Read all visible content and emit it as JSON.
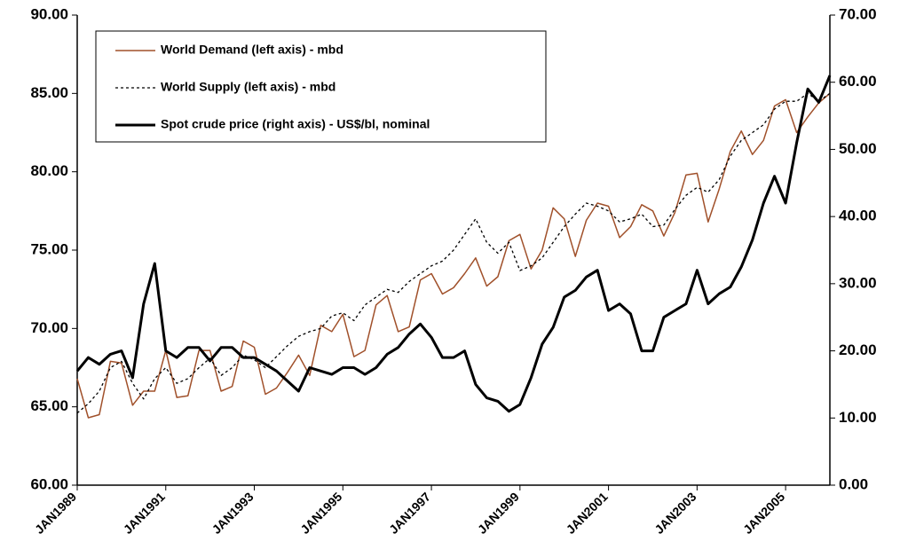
{
  "chart_data": {
    "type": "line",
    "categories": [
      "JAN1989",
      null,
      null,
      null,
      null,
      null,
      null,
      null,
      "JAN1991",
      null,
      null,
      null,
      null,
      null,
      null,
      null,
      "JAN1993",
      null,
      null,
      null,
      null,
      null,
      null,
      null,
      "JAN1995",
      null,
      null,
      null,
      null,
      null,
      null,
      null,
      "JAN1997",
      null,
      null,
      null,
      null,
      null,
      null,
      null,
      "JAN1999",
      null,
      null,
      null,
      null,
      null,
      null,
      null,
      "JAN2001",
      null,
      null,
      null,
      null,
      null,
      null,
      null,
      "JAN2003",
      null,
      null,
      null,
      null,
      null,
      null,
      null,
      "JAN2005",
      null,
      null,
      null,
      null
    ],
    "series": [
      {
        "name": "World Demand (left axis) - mbd",
        "color": "#a0502a",
        "style": "solid",
        "axis": "y",
        "values": [
          66.8,
          64.3,
          64.5,
          67.9,
          67.8,
          65.1,
          66.0,
          66.0,
          68.6,
          65.6,
          65.7,
          68.6,
          68.6,
          66.0,
          66.3,
          69.2,
          68.8,
          65.8,
          66.2,
          67.2,
          68.3,
          67.0,
          70.2,
          69.8,
          70.9,
          68.2,
          68.6,
          71.5,
          72.1,
          69.8,
          70.1,
          73.1,
          73.5,
          72.2,
          72.6,
          73.5,
          74.5,
          72.7,
          73.3,
          75.6,
          76.0,
          73.8,
          75.0,
          77.7,
          77.0,
          74.6,
          76.9,
          78.0,
          77.8,
          75.8,
          76.5,
          77.9,
          77.5,
          75.9,
          77.4,
          79.8,
          79.9,
          76.8,
          78.9,
          81.3,
          82.6,
          81.1,
          82.0,
          84.2,
          84.6,
          82.5,
          83.5,
          84.4,
          85.0
        ]
      },
      {
        "name": "World Supply (left axis) - mbd",
        "color": "#000000",
        "style": "dotted",
        "axis": "y",
        "values": [
          64.6,
          65.2,
          66.0,
          67.5,
          67.9,
          66.5,
          65.5,
          66.8,
          67.5,
          66.5,
          66.8,
          67.5,
          68.1,
          67.0,
          67.5,
          68.3,
          68.0,
          67.5,
          68.2,
          68.9,
          69.5,
          69.8,
          70.0,
          70.8,
          71.0,
          70.5,
          71.5,
          72.0,
          72.5,
          72.3,
          73.0,
          73.5,
          74.0,
          74.3,
          75.0,
          76.0,
          77.0,
          75.5,
          74.8,
          75.5,
          73.7,
          74.0,
          74.5,
          75.5,
          76.5,
          77.3,
          78.0,
          77.8,
          77.5,
          76.8,
          77.0,
          77.3,
          76.5,
          76.6,
          77.6,
          78.5,
          79.0,
          78.7,
          79.5,
          81.0,
          82.0,
          82.5,
          83.0,
          84.0,
          84.5,
          84.5,
          85.0,
          84.5,
          85.0
        ]
      },
      {
        "name": "Spot crude price (right axis) - US$/bl, nominal",
        "color": "#000000",
        "style": "thick",
        "axis": "y2",
        "values": [
          17,
          19,
          18,
          19.5,
          20,
          16,
          27,
          33,
          20,
          19,
          20.5,
          20.5,
          18.5,
          20.5,
          20.5,
          19,
          19,
          18,
          17,
          15.5,
          14,
          17.5,
          17,
          16.5,
          17.5,
          17.5,
          16.5,
          17.5,
          19.5,
          20.5,
          22.5,
          24,
          22,
          19,
          19,
          20,
          15,
          13,
          12.5,
          11,
          12,
          16,
          21,
          23.5,
          28,
          29,
          31,
          32,
          26,
          27,
          25.5,
          20,
          20,
          25,
          26,
          27,
          32,
          27,
          28.5,
          29.5,
          32.5,
          36.5,
          42,
          46,
          42,
          51,
          59,
          57,
          61
        ]
      }
    ],
    "ylim": [
      60,
      90
    ],
    "yticks": [
      {
        "value": 60,
        "label": "60.00"
      },
      {
        "value": 65,
        "label": "65.00"
      },
      {
        "value": 70,
        "label": "70.00"
      },
      {
        "value": 75,
        "label": "75.00"
      },
      {
        "value": 80,
        "label": "80.00"
      },
      {
        "value": 85,
        "label": "85.00"
      },
      {
        "value": 90,
        "label": "90.00"
      }
    ],
    "y2lim": [
      0,
      70
    ],
    "y2ticks": [
      {
        "value": 0,
        "label": "0.00"
      },
      {
        "value": 10,
        "label": "10.00"
      },
      {
        "value": 20,
        "label": "20.00"
      },
      {
        "value": 30,
        "label": "30.00"
      },
      {
        "value": 40,
        "label": "40.00"
      },
      {
        "value": 50,
        "label": "50.00"
      },
      {
        "value": 60,
        "label": "60.00"
      },
      {
        "value": 70,
        "label": "70.00"
      }
    ],
    "grid": false,
    "legend": "top-left"
  }
}
